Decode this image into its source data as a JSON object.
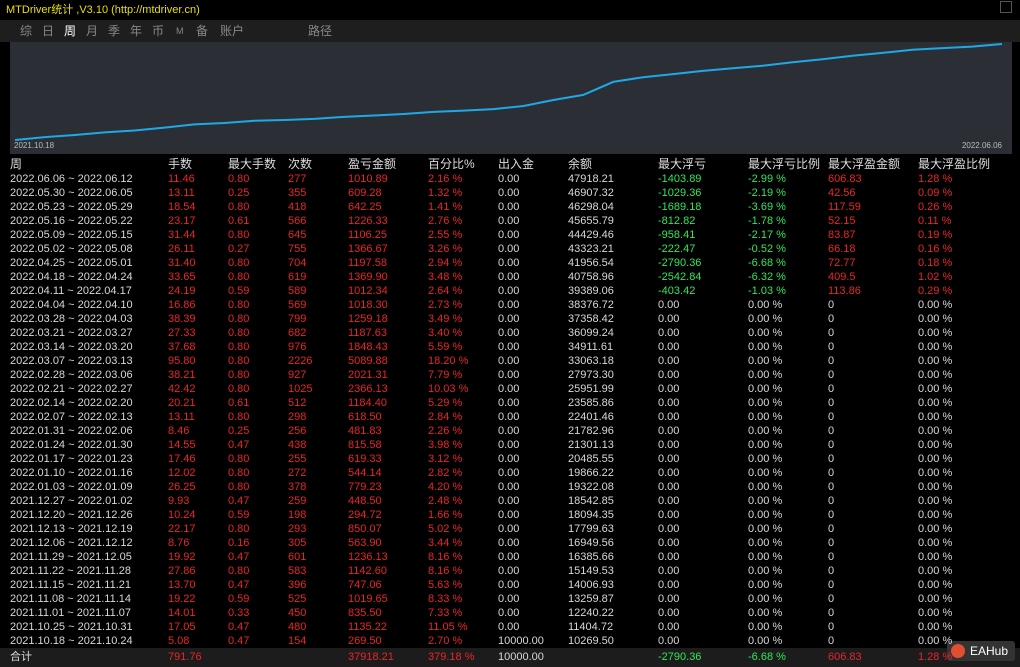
{
  "header": {
    "title": "MTDriver统计 ,V3.10 (http://mtdriver.cn)"
  },
  "tabs": [
    "综",
    "日",
    "周",
    "月",
    "季",
    "年",
    "币",
    "M",
    "备",
    "账户",
    "路径"
  ],
  "curve": {
    "x_start": "2021.10.18",
    "x_end": "2022.06.06"
  },
  "table": {
    "columns": [
      "周",
      "手数",
      "最大手数",
      "次数",
      "盈亏金额",
      "百分比%",
      "出入金",
      "余额",
      "最大浮亏",
      "最大浮亏比例",
      "最大浮盈金额",
      "最大浮盈比例"
    ],
    "rows": [
      [
        "2022.06.06 ~ 2022.06.12",
        "11.46",
        "0.80",
        "277",
        "1010.89",
        "2.16 %",
        "0.00",
        "47918.21",
        "-1403.89",
        "-2.99 %",
        "606.83",
        "1.28 %"
      ],
      [
        "2022.05.30 ~ 2022.06.05",
        "13.11",
        "0.25",
        "355",
        "609.28",
        "1.32 %",
        "0.00",
        "46907.32",
        "-1029.36",
        "-2.19 %",
        "42.56",
        "0.09 %"
      ],
      [
        "2022.05.23 ~ 2022.05.29",
        "18.54",
        "0.80",
        "418",
        "642.25",
        "1.41 %",
        "0.00",
        "46298.04",
        "-1689.18",
        "-3.69 %",
        "117.59",
        "0.26 %"
      ],
      [
        "2022.05.16 ~ 2022.05.22",
        "23.17",
        "0.61",
        "566",
        "1226.33",
        "2.76 %",
        "0.00",
        "45655.79",
        "-812.82",
        "-1.78 %",
        "52.15",
        "0.11 %"
      ],
      [
        "2022.05.09 ~ 2022.05.15",
        "31.44",
        "0.80",
        "645",
        "1106.25",
        "2.55 %",
        "0.00",
        "44429.46",
        "-958.41",
        "-2.17 %",
        "83.87",
        "0.19 %"
      ],
      [
        "2022.05.02 ~ 2022.05.08",
        "26.11",
        "0.27",
        "755",
        "1366.67",
        "3.26 %",
        "0.00",
        "43323.21",
        "-222.47",
        "-0.52 %",
        "66.18",
        "0.16 %"
      ],
      [
        "2022.04.25 ~ 2022.05.01",
        "31.40",
        "0.80",
        "704",
        "1197.58",
        "2.94 %",
        "0.00",
        "41956.54",
        "-2790.36",
        "-6.68 %",
        "72.77",
        "0.18 %"
      ],
      [
        "2022.04.18 ~ 2022.04.24",
        "33.65",
        "0.80",
        "619",
        "1369.90",
        "3.48 %",
        "0.00",
        "40758.96",
        "-2542.84",
        "-6.32 %",
        "409.5",
        "1.02 %"
      ],
      [
        "2022.04.11 ~ 2022.04.17",
        "24.19",
        "0.59",
        "589",
        "1012.34",
        "2.64 %",
        "0.00",
        "39389.06",
        "-403.42",
        "-1.03 %",
        "113.86",
        "0.29 %"
      ],
      [
        "2022.04.04 ~ 2022.04.10",
        "16.86",
        "0.80",
        "569",
        "1018.30",
        "2.73 %",
        "0.00",
        "38376.72",
        "0.00",
        "0.00 %",
        "0",
        "0.00 %"
      ],
      [
        "2022.03.28 ~ 2022.04.03",
        "38.39",
        "0.80",
        "799",
        "1259.18",
        "3.49 %",
        "0.00",
        "37358.42",
        "0.00",
        "0.00 %",
        "0",
        "0.00 %"
      ],
      [
        "2022.03.21 ~ 2022.03.27",
        "27.33",
        "0.80",
        "682",
        "1187.63",
        "3.40 %",
        "0.00",
        "36099.24",
        "0.00",
        "0.00 %",
        "0",
        "0.00 %"
      ],
      [
        "2022.03.14 ~ 2022.03.20",
        "37.68",
        "0.80",
        "976",
        "1848.43",
        "5.59 %",
        "0.00",
        "34911.61",
        "0.00",
        "0.00 %",
        "0",
        "0.00 %"
      ],
      [
        "2022.03.07 ~ 2022.03.13",
        "95.80",
        "0.80",
        "2226",
        "5089.88",
        "18.20 %",
        "0.00",
        "33063.18",
        "0.00",
        "0.00 %",
        "0",
        "0.00 %"
      ],
      [
        "2022.02.28 ~ 2022.03.06",
        "38.21",
        "0.80",
        "927",
        "2021.31",
        "7.79 %",
        "0.00",
        "27973.30",
        "0.00",
        "0.00 %",
        "0",
        "0.00 %"
      ],
      [
        "2022.02.21 ~ 2022.02.27",
        "42.42",
        "0.80",
        "1025",
        "2366.13",
        "10.03 %",
        "0.00",
        "25951.99",
        "0.00",
        "0.00 %",
        "0",
        "0.00 %"
      ],
      [
        "2022.02.14 ~ 2022.02.20",
        "20.21",
        "0.61",
        "512",
        "1184.40",
        "5.29 %",
        "0.00",
        "23585.86",
        "0.00",
        "0.00 %",
        "0",
        "0.00 %"
      ],
      [
        "2022.02.07 ~ 2022.02.13",
        "13.11",
        "0.80",
        "298",
        "618.50",
        "2.84 %",
        "0.00",
        "22401.46",
        "0.00",
        "0.00 %",
        "0",
        "0.00 %"
      ],
      [
        "2022.01.31 ~ 2022.02.06",
        "8.46",
        "0.25",
        "256",
        "481.83",
        "2.26 %",
        "0.00",
        "21782.96",
        "0.00",
        "0.00 %",
        "0",
        "0.00 %"
      ],
      [
        "2022.01.24 ~ 2022.01.30",
        "14.55",
        "0.47",
        "438",
        "815.58",
        "3.98 %",
        "0.00",
        "21301.13",
        "0.00",
        "0.00 %",
        "0",
        "0.00 %"
      ],
      [
        "2022.01.17 ~ 2022.01.23",
        "17.46",
        "0.80",
        "255",
        "619.33",
        "3.12 %",
        "0.00",
        "20485.55",
        "0.00",
        "0.00 %",
        "0",
        "0.00 %"
      ],
      [
        "2022.01.10 ~ 2022.01.16",
        "12.02",
        "0.80",
        "272",
        "544.14",
        "2.82 %",
        "0.00",
        "19866.22",
        "0.00",
        "0.00 %",
        "0",
        "0.00 %"
      ],
      [
        "2022.01.03 ~ 2022.01.09",
        "26.25",
        "0.80",
        "378",
        "779.23",
        "4.20 %",
        "0.00",
        "19322.08",
        "0.00",
        "0.00 %",
        "0",
        "0.00 %"
      ],
      [
        "2021.12.27 ~ 2022.01.02",
        "9.93",
        "0.47",
        "259",
        "448.50",
        "2.48 %",
        "0.00",
        "18542.85",
        "0.00",
        "0.00 %",
        "0",
        "0.00 %"
      ],
      [
        "2021.12.20 ~ 2021.12.26",
        "10.24",
        "0.59",
        "198",
        "294.72",
        "1.66 %",
        "0.00",
        "18094.35",
        "0.00",
        "0.00 %",
        "0",
        "0.00 %"
      ],
      [
        "2021.12.13 ~ 2021.12.19",
        "22.17",
        "0.80",
        "293",
        "850.07",
        "5.02 %",
        "0.00",
        "17799.63",
        "0.00",
        "0.00 %",
        "0",
        "0.00 %"
      ],
      [
        "2021.12.06 ~ 2021.12.12",
        "8.76",
        "0.16",
        "305",
        "563.90",
        "3.44 %",
        "0.00",
        "16949.56",
        "0.00",
        "0.00 %",
        "0",
        "0.00 %"
      ],
      [
        "2021.11.29 ~ 2021.12.05",
        "19.92",
        "0.47",
        "601",
        "1236.13",
        "8.16 %",
        "0.00",
        "16385.66",
        "0.00",
        "0.00 %",
        "0",
        "0.00 %"
      ],
      [
        "2021.11.22 ~ 2021.11.28",
        "27.86",
        "0.80",
        "583",
        "1142.60",
        "8.16 %",
        "0.00",
        "15149.53",
        "0.00",
        "0.00 %",
        "0",
        "0.00 %"
      ],
      [
        "2021.11.15 ~ 2021.11.21",
        "13.70",
        "0.47",
        "396",
        "747.06",
        "5.63 %",
        "0.00",
        "14006.93",
        "0.00",
        "0.00 %",
        "0",
        "0.00 %"
      ],
      [
        "2021.11.08 ~ 2021.11.14",
        "19.22",
        "0.59",
        "525",
        "1019.65",
        "8.33 %",
        "0.00",
        "13259.87",
        "0.00",
        "0.00 %",
        "0",
        "0.00 %"
      ],
      [
        "2021.11.01 ~ 2021.11.07",
        "14.01",
        "0.33",
        "450",
        "835.50",
        "7.33 %",
        "0.00",
        "12240.22",
        "0.00",
        "0.00 %",
        "0",
        "0.00 %"
      ],
      [
        "2021.10.25 ~ 2021.10.31",
        "17.05",
        "0.47",
        "480",
        "1135.22",
        "11.05 %",
        "0.00",
        "11404.72",
        "0.00",
        "0.00 %",
        "0",
        "0.00 %"
      ],
      [
        "2021.10.18 ~ 2021.10.24",
        "5.08",
        "0.47",
        "154",
        "269.50",
        "2.70 %",
        "10000.00",
        "10269.50",
        "0.00",
        "0.00 %",
        "0",
        "0.00 %"
      ]
    ],
    "total": [
      "合计",
      "791.76",
      null,
      null,
      "37918.21",
      "379.18 %",
      "10000.00",
      null,
      "-2790.36",
      "-6.68 %",
      "606.83",
      "1.28 %"
    ]
  },
  "watermark": "EAHub"
}
